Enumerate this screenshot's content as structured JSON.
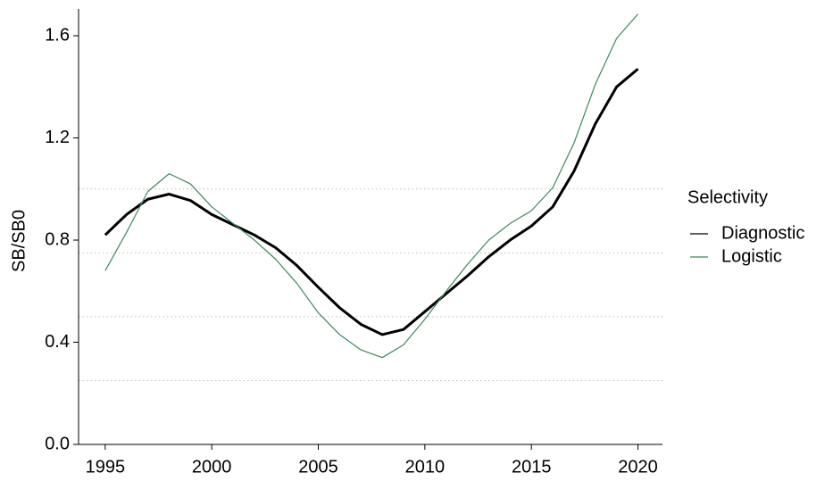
{
  "chart_data": {
    "type": "line",
    "y_label": "SB/SB0",
    "x": [
      1995,
      1996,
      1997,
      1998,
      1999,
      2000,
      2001,
      2002,
      2003,
      2004,
      2005,
      2006,
      2007,
      2008,
      2009,
      2010,
      2011,
      2012,
      2013,
      2014,
      2015,
      2016,
      2017,
      2018,
      2019,
      2020
    ],
    "series": [
      {
        "name": "Diagnostic",
        "color": "#000000",
        "width": 3,
        "values": [
          0.82,
          0.9,
          0.96,
          0.98,
          0.955,
          0.9,
          0.86,
          0.82,
          0.77,
          0.7,
          0.615,
          0.535,
          0.47,
          0.43,
          0.45,
          0.52,
          0.59,
          0.66,
          0.735,
          0.8,
          0.855,
          0.93,
          1.07,
          1.255,
          1.4,
          1.47
        ]
      },
      {
        "name": "Logistic",
        "color": "#3a8a5c",
        "width": 1.2,
        "values": [
          0.68,
          0.83,
          0.99,
          1.06,
          1.02,
          0.93,
          0.865,
          0.8,
          0.725,
          0.63,
          0.515,
          0.43,
          0.37,
          0.34,
          0.39,
          0.49,
          0.6,
          0.705,
          0.8,
          0.865,
          0.915,
          1.005,
          1.18,
          1.41,
          1.59,
          1.685
        ]
      }
    ],
    "legend_title": "Selectivity",
    "legend": "right",
    "xlim": [
      1993.75,
      2021.15
    ],
    "xticks": [
      1995,
      2000,
      2005,
      2010,
      2015,
      2020
    ],
    "ylim": [
      0,
      1.705
    ],
    "yticks": [
      {
        "value": 0,
        "label": "0.0"
      },
      0.4,
      0.8,
      1.2,
      1.6
    ],
    "hlines": [
      1.0,
      0.75,
      0.5,
      0.25
    ]
  }
}
